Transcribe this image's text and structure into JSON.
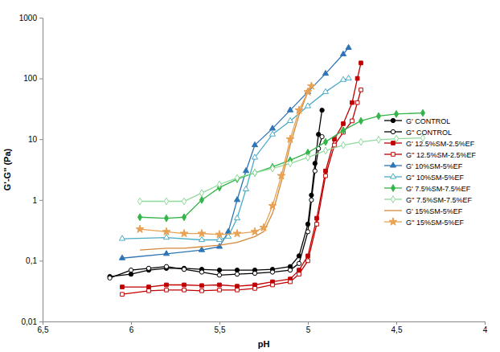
{
  "chart_data": {
    "type": "line",
    "x_label": "pH",
    "y_label": "G'-G'' (Pa)",
    "log": "y",
    "grid": false,
    "legend": "right",
    "xlim": [
      6.5,
      4
    ],
    "xticks": [
      {
        "value": 6.5,
        "label": "6,5"
      },
      6,
      {
        "value": 5.5,
        "label": "5,5"
      },
      5,
      {
        "value": 4.5,
        "label": "4,5"
      },
      4
    ],
    "ylim": [
      0.01,
      1000
    ],
    "yticks": [
      {
        "value": 0.01,
        "label": "0,01"
      },
      {
        "value": 0.1,
        "label": "0,1"
      },
      1,
      10,
      100,
      1000
    ],
    "series": [
      {
        "name": "G' CONTROL",
        "color": "#000000",
        "marker": "circle",
        "x": [
          6.12,
          6.0,
          5.9,
          5.8,
          5.7,
          5.6,
          5.5,
          5.4,
          5.3,
          5.2,
          5.1,
          5.05,
          5.0,
          4.98,
          4.96,
          4.94,
          4.92
        ],
        "values": [
          0.055,
          0.06,
          0.07,
          0.075,
          0.075,
          0.072,
          0.07,
          0.07,
          0.07,
          0.072,
          0.08,
          0.12,
          0.4,
          1.2,
          4,
          12,
          30
        ]
      },
      {
        "name": "G'' CONTROL",
        "color": "#000000",
        "marker": "circle-open",
        "x": [
          6.12,
          6.0,
          5.9,
          5.8,
          5.7,
          5.6,
          5.5,
          5.4,
          5.3,
          5.2,
          5.1,
          5.05,
          5.0,
          4.98,
          4.96,
          4.94,
          4.92
        ],
        "values": [
          0.052,
          0.07,
          0.075,
          0.08,
          0.072,
          0.065,
          0.058,
          0.06,
          0.062,
          0.065,
          0.07,
          0.09,
          0.3,
          1,
          3,
          7,
          11
        ]
      },
      {
        "name": "G' 12.5%SM-2.5%EF",
        "color": "#c00000",
        "marker": "square",
        "x": [
          6.05,
          5.9,
          5.8,
          5.7,
          5.6,
          5.5,
          5.4,
          5.3,
          5.2,
          5.1,
          5.05,
          5.0,
          4.95,
          4.9,
          4.85,
          4.8,
          4.75,
          4.72,
          4.7
        ],
        "values": [
          0.037,
          0.037,
          0.04,
          0.04,
          0.039,
          0.04,
          0.038,
          0.04,
          0.045,
          0.05,
          0.07,
          0.12,
          0.5,
          3,
          10,
          18,
          40,
          100,
          180
        ]
      },
      {
        "name": "G'' 12.5%SM-2.5%EF",
        "color": "#c00000",
        "marker": "square-open",
        "x": [
          6.05,
          5.9,
          5.8,
          5.7,
          5.6,
          5.5,
          5.4,
          5.3,
          5.2,
          5.1,
          5.05,
          5.0,
          4.95,
          4.9,
          4.85,
          4.8,
          4.75,
          4.72,
          4.7
        ],
        "values": [
          0.028,
          0.032,
          0.033,
          0.033,
          0.032,
          0.033,
          0.033,
          0.035,
          0.04,
          0.045,
          0.06,
          0.1,
          0.4,
          2.5,
          8,
          13,
          20,
          40,
          65
        ]
      },
      {
        "name": "G' 10%SM-5%EF",
        "color": "#2e75b6",
        "marker": "triangle",
        "x": [
          6.05,
          5.8,
          5.6,
          5.5,
          5.45,
          5.4,
          5.35,
          5.3,
          5.2,
          5.1,
          5.0,
          4.9,
          4.8,
          4.77
        ],
        "values": [
          0.11,
          0.13,
          0.15,
          0.17,
          0.3,
          1,
          3,
          8,
          15,
          30,
          60,
          120,
          250,
          320
        ]
      },
      {
        "name": "G'' 10%SM-5%EF",
        "color": "#4bacc6",
        "marker": "triangle-open",
        "x": [
          6.05,
          5.8,
          5.6,
          5.5,
          5.45,
          5.4,
          5.35,
          5.3,
          5.2,
          5.1,
          5.0,
          4.9,
          4.8,
          4.77
        ],
        "values": [
          0.23,
          0.24,
          0.22,
          0.22,
          0.25,
          0.5,
          1.5,
          5,
          12,
          20,
          35,
          60,
          95,
          100
        ]
      },
      {
        "name": "G' 7.5%SM-7.5%EF",
        "color": "#33b54a",
        "marker": "diamond",
        "x": [
          5.95,
          5.8,
          5.7,
          5.6,
          5.5,
          5.4,
          5.3,
          5.2,
          5.1,
          5.0,
          4.9,
          4.8,
          4.7,
          4.6,
          4.5,
          4.35
        ],
        "values": [
          0.52,
          0.5,
          0.52,
          1.0,
          1.6,
          2.2,
          2.8,
          3.5,
          4.5,
          6,
          9,
          14,
          20,
          24,
          26,
          27
        ]
      },
      {
        "name": "G'' 7.5%SM-7.5%EF",
        "color": "#8fd99b",
        "marker": "diamond-open",
        "x": [
          5.95,
          5.8,
          5.7,
          5.6,
          5.5,
          5.4,
          5.3,
          5.2,
          5.1,
          5.0,
          4.9,
          4.8,
          4.7,
          4.6,
          4.5,
          4.35
        ],
        "values": [
          0.95,
          0.95,
          0.95,
          1.3,
          1.8,
          2.3,
          2.8,
          3.3,
          4,
          5,
          6.5,
          8,
          9,
          9.8,
          10.2,
          10.5
        ]
      },
      {
        "name": "G' 15%SM-5%EF",
        "color": "#d4883a",
        "marker": "none",
        "x": [
          5.95,
          5.8,
          5.7,
          5.6,
          5.5,
          5.4,
          5.3,
          5.25,
          5.2,
          5.15,
          5.1,
          5.05,
          5.0,
          4.98
        ],
        "values": [
          0.15,
          0.16,
          0.16,
          0.17,
          0.18,
          0.2,
          0.25,
          0.3,
          0.6,
          2,
          8,
          25,
          60,
          80
        ]
      },
      {
        "name": "G'' 15%SM-5%EF",
        "color": "#e8a254",
        "marker": "star",
        "x": [
          5.95,
          5.8,
          5.7,
          5.6,
          5.5,
          5.4,
          5.3,
          5.25,
          5.2,
          5.15,
          5.1,
          5.05,
          5.0,
          4.98
        ],
        "values": [
          0.33,
          0.3,
          0.28,
          0.28,
          0.27,
          0.28,
          0.3,
          0.35,
          0.8,
          2.5,
          10,
          30,
          60,
          75
        ]
      }
    ]
  }
}
